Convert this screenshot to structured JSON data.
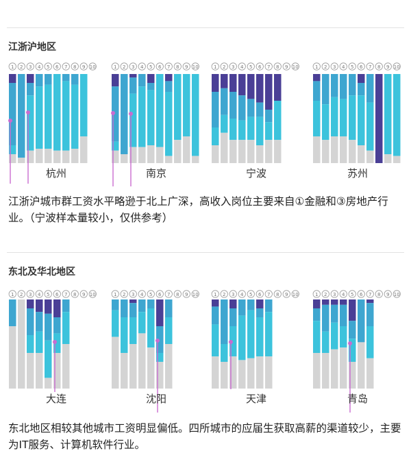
{
  "regions": [
    {
      "title": "江浙沪地区",
      "caption": "江浙沪城市群工资水平略逊于北上广深，高收入岗位主要来自①金融和③房地产行业。（宁波样本量较小，仅供参考）"
    },
    {
      "title": "东北及华北地区",
      "caption": "东北地区相较其他城市工资明显偏低。四所城市的应届生获取高薪的渠道较少，主要为IT服务、计算机软件行业。"
    }
  ],
  "colors": {
    "dark": "#4a3f96",
    "mid": "#3ea6d0",
    "cyan": "#3cc3dc",
    "gray": "#d4d4d4",
    "marker": "#c96cd0",
    "label": "#333333"
  },
  "chart_data": [
    {
      "type": "bar",
      "stacked": true,
      "city": "杭州",
      "categories": [
        "1",
        "2",
        "3",
        "4",
        "5",
        "6",
        "7",
        "8",
        "9",
        "10"
      ],
      "series": [
        {
          "values": [
            10,
            0,
            10,
            0,
            0,
            0,
            0,
            0,
            0,
            0
          ]
        },
        {
          "values": [
            70,
            94,
            14,
            14,
            12,
            0,
            8,
            12,
            0,
            0
          ]
        },
        {
          "values": [
            10,
            0,
            62,
            70,
            72,
            86,
            78,
            72,
            70,
            0
          ]
        },
        {
          "values": [
            10,
            6,
            14,
            16,
            16,
            14,
            14,
            16,
            30,
            0
          ]
        }
      ]
    },
    {
      "type": "bar",
      "stacked": true,
      "city": "南京",
      "categories": [
        "1",
        "2",
        "3",
        "4",
        "5",
        "6",
        "7",
        "8",
        "9",
        "10"
      ],
      "series": [
        {
          "values": [
            14,
            0,
            4,
            0,
            10,
            0,
            8,
            0,
            0,
            0
          ]
        },
        {
          "values": [
            62,
            90,
            18,
            14,
            8,
            0,
            12,
            0,
            0,
            0
          ]
        },
        {
          "values": [
            10,
            0,
            60,
            68,
            62,
            82,
            72,
            74,
            70,
            92
          ]
        },
        {
          "values": [
            14,
            10,
            18,
            18,
            20,
            18,
            8,
            26,
            30,
            8
          ]
        }
      ]
    },
    {
      "type": "bar",
      "stacked": true,
      "city": "宁波",
      "categories": [
        "1",
        "2",
        "3",
        "4",
        "5",
        "6",
        "7",
        "8",
        "9",
        "10"
      ],
      "series": [
        {
          "values": [
            20,
            16,
            20,
            24,
            28,
            32,
            40,
            30,
            0,
            0
          ]
        },
        {
          "values": [
            40,
            30,
            30,
            28,
            20,
            16,
            14,
            0,
            0,
            0
          ]
        },
        {
          "values": [
            20,
            20,
            24,
            22,
            26,
            32,
            20,
            44,
            0,
            0
          ]
        },
        {
          "values": [
            20,
            34,
            26,
            26,
            26,
            20,
            26,
            26,
            0,
            0
          ]
        }
      ]
    },
    {
      "type": "bar",
      "stacked": true,
      "city": "苏州",
      "categories": [
        "1",
        "2",
        "3",
        "4",
        "5",
        "6",
        "7",
        "8",
        "9",
        "10"
      ],
      "series": [
        {
          "values": [
            8,
            0,
            0,
            0,
            0,
            10,
            0,
            100,
            0,
            0
          ]
        },
        {
          "values": [
            22,
            34,
            26,
            28,
            24,
            14,
            32,
            0,
            0,
            0
          ]
        },
        {
          "values": [
            40,
            40,
            44,
            42,
            50,
            56,
            54,
            0,
            90,
            92
          ]
        },
        {
          "values": [
            30,
            26,
            30,
            30,
            26,
            20,
            14,
            0,
            10,
            8
          ]
        }
      ]
    },
    {
      "type": "bar",
      "stacked": true,
      "city": "大连",
      "categories": [
        "1",
        "2",
        "3",
        "4",
        "5",
        "6",
        "7",
        "8",
        "9",
        "10"
      ],
      "series": [
        {
          "values": [
            0,
            0,
            10,
            14,
            16,
            20,
            0,
            0,
            0,
            0
          ]
        },
        {
          "values": [
            30,
            0,
            30,
            22,
            30,
            18,
            14,
            0,
            0,
            0
          ]
        },
        {
          "values": [
            0,
            0,
            20,
            24,
            42,
            22,
            36,
            0,
            0,
            0
          ]
        },
        {
          "values": [
            70,
            100,
            40,
            40,
            12,
            40,
            50,
            0,
            0,
            0
          ]
        }
      ]
    },
    {
      "type": "bar",
      "stacked": true,
      "city": "沈阳",
      "categories": [
        "1",
        "2",
        "3",
        "4",
        "5",
        "6",
        "7",
        "8",
        "9",
        "10"
      ],
      "series": [
        {
          "values": [
            0,
            0,
            4,
            0,
            0,
            30,
            0,
            0,
            0,
            0
          ]
        },
        {
          "values": [
            12,
            20,
            16,
            14,
            10,
            30,
            20,
            0,
            0,
            0
          ]
        },
        {
          "values": [
            30,
            40,
            30,
            24,
            44,
            10,
            30,
            0,
            0,
            0
          ]
        },
        {
          "values": [
            58,
            40,
            50,
            62,
            46,
            30,
            50,
            0,
            0,
            0
          ]
        }
      ]
    },
    {
      "type": "bar",
      "stacked": true,
      "city": "天津",
      "categories": [
        "1",
        "2",
        "3",
        "4",
        "5",
        "6",
        "7",
        "8",
        "9",
        "10"
      ],
      "series": [
        {
          "values": [
            8,
            0,
            10,
            0,
            0,
            10,
            0,
            0,
            0,
            0
          ]
        },
        {
          "values": [
            20,
            50,
            20,
            18,
            12,
            10,
            14,
            0,
            0,
            0
          ]
        },
        {
          "values": [
            36,
            20,
            34,
            50,
            54,
            44,
            50,
            0,
            0,
            0
          ]
        },
        {
          "values": [
            36,
            30,
            36,
            32,
            34,
            36,
            36,
            0,
            0,
            0
          ]
        }
      ]
    },
    {
      "type": "bar",
      "stacked": true,
      "city": "青岛",
      "categories": [
        "1",
        "2",
        "3",
        "4",
        "5",
        "6",
        "7",
        "8",
        "9",
        "10"
      ],
      "series": [
        {
          "values": [
            10,
            6,
            6,
            6,
            24,
            0,
            4,
            0,
            0,
            0
          ]
        },
        {
          "values": [
            14,
            30,
            20,
            24,
            20,
            48,
            26,
            0,
            0,
            0
          ]
        },
        {
          "values": [
            36,
            24,
            30,
            24,
            26,
            0,
            36,
            0,
            0,
            0
          ]
        },
        {
          "values": [
            40,
            40,
            44,
            46,
            30,
            52,
            34,
            0,
            0,
            0
          ]
        }
      ]
    }
  ]
}
